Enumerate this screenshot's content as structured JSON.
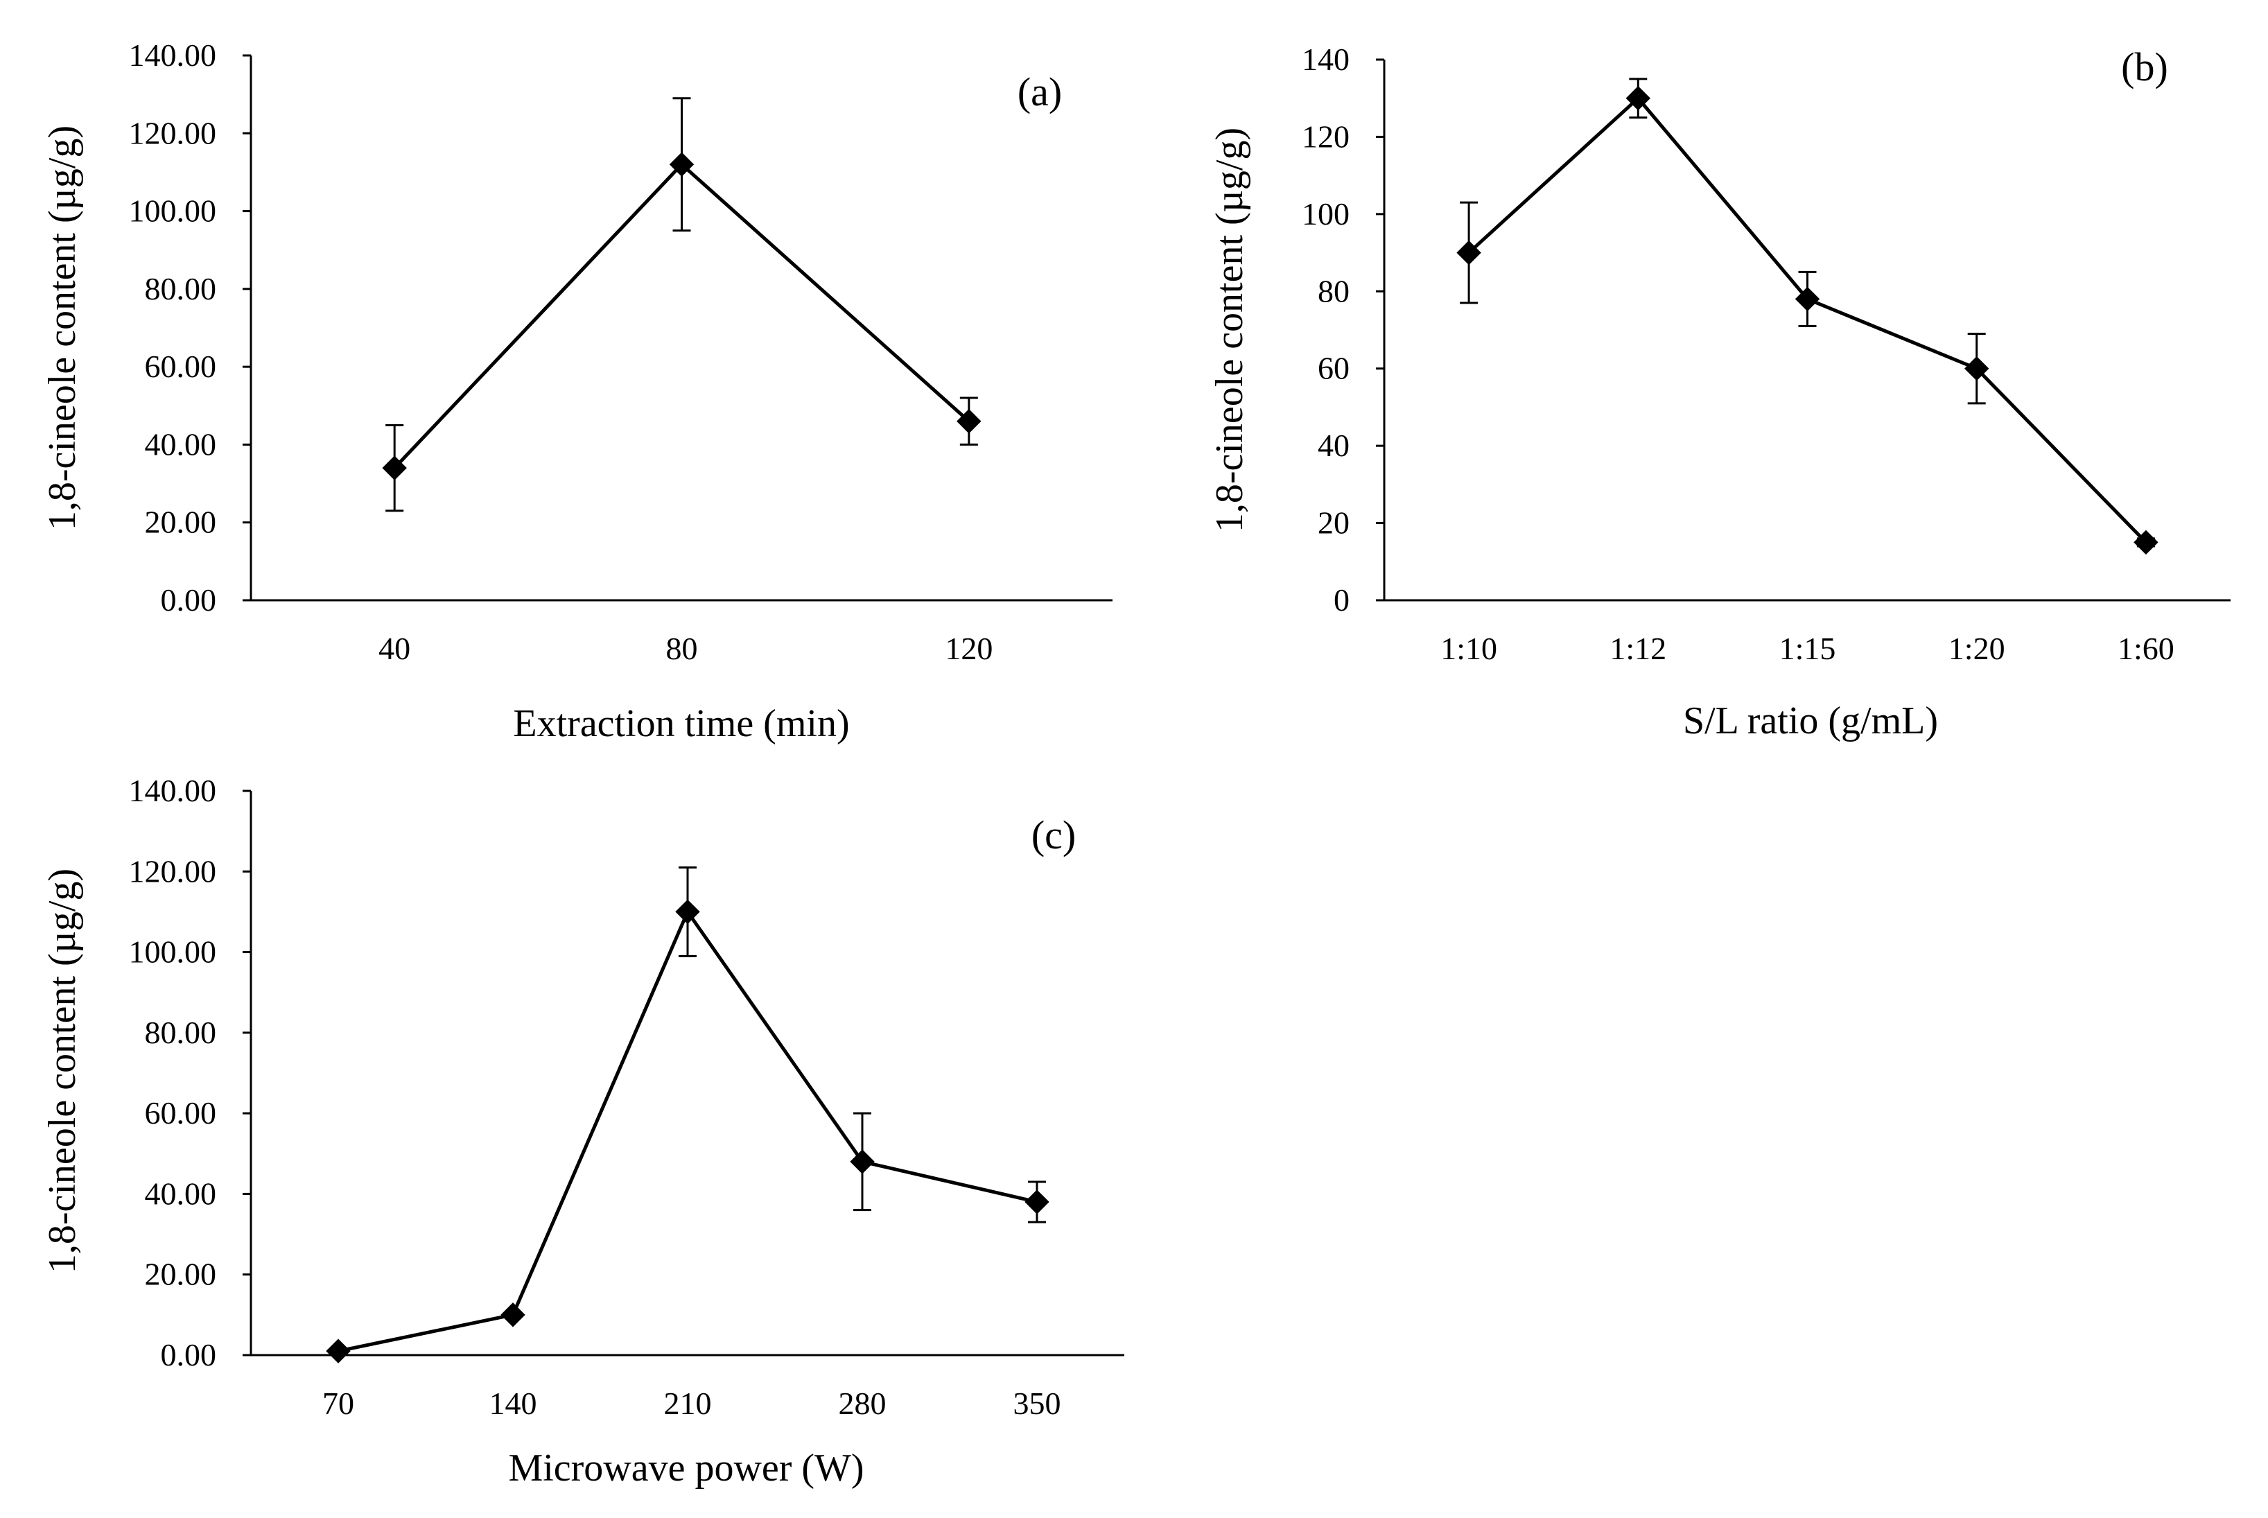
{
  "chart_data": [
    {
      "type": "line",
      "panel_label": "(a)",
      "xlabel": "Extraction time (min)",
      "ylabel": "1,8-cineole content (µg/g)",
      "categories": [
        "40",
        "80",
        "120"
      ],
      "values": [
        34,
        112,
        46
      ],
      "errors": [
        11,
        17,
        6
      ],
      "ylim": [
        0,
        140
      ],
      "yticks": [
        "0.00",
        "20.00",
        "40.00",
        "60.00",
        "80.00",
        "100.00",
        "120.00",
        "140.00"
      ],
      "marker": "diamond",
      "grid": false,
      "legend": "none"
    },
    {
      "type": "line",
      "panel_label": "(b)",
      "xlabel": "S/L ratio (g/mL)",
      "ylabel": "1,8-cineole content (µg/g)",
      "categories": [
        "1:10",
        "1:12",
        "1:15",
        "1:20",
        "1:60"
      ],
      "values": [
        90,
        130,
        78,
        60,
        15
      ],
      "errors": [
        13,
        5,
        7,
        9,
        1
      ],
      "ylim": [
        0,
        140
      ],
      "yticks": [
        "0",
        "20",
        "40",
        "60",
        "80",
        "100",
        "120",
        "140"
      ],
      "marker": "diamond",
      "grid": false,
      "legend": "none"
    },
    {
      "type": "line",
      "panel_label": "(c)",
      "xlabel": "Microwave power (W)",
      "ylabel": "1,8-cineole content (µg/g)",
      "categories": [
        "70",
        "140",
        "210",
        "280",
        "350"
      ],
      "values": [
        1,
        10,
        110,
        48,
        38
      ],
      "errors": [
        0,
        0,
        11,
        12,
        5
      ],
      "ylim": [
        0,
        140
      ],
      "yticks": [
        "0.00",
        "20.00",
        "40.00",
        "60.00",
        "80.00",
        "100.00",
        "120.00",
        "140.00"
      ],
      "marker": "diamond",
      "grid": false,
      "legend": "none"
    }
  ]
}
